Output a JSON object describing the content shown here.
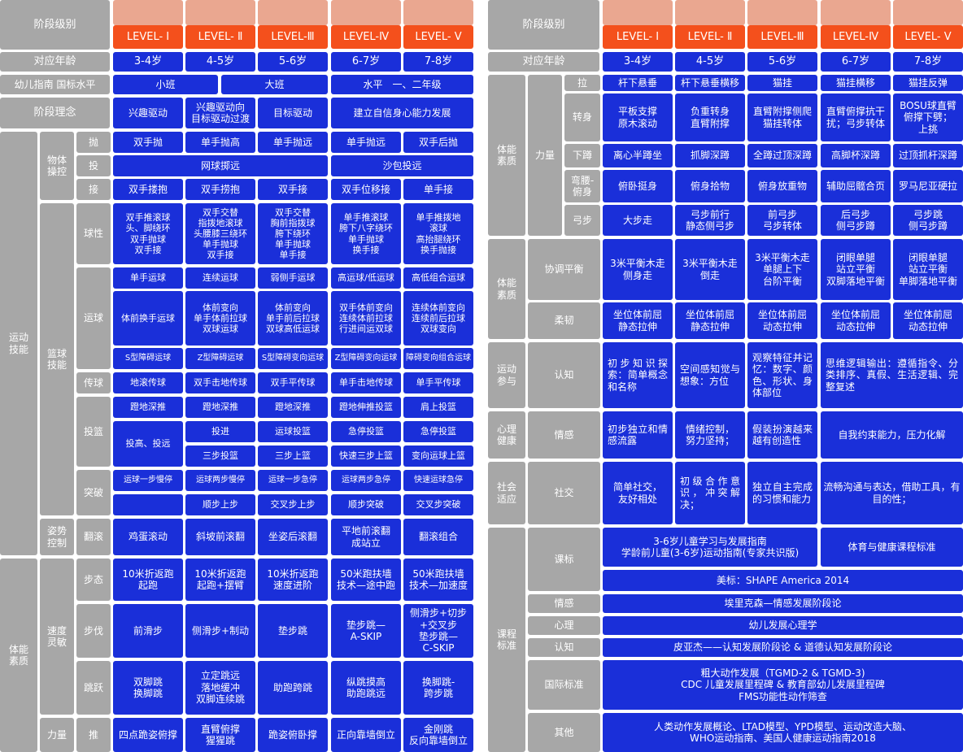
{
  "colors": {
    "gray": "#a7a7a7",
    "blue": "#1a2fd9",
    "orange": "#f4501c",
    "peach": "#eaa790"
  },
  "levels": [
    "LEVEL- Ⅰ",
    "LEVEL- Ⅱ",
    "LEVEL-Ⅲ",
    "LEVEL-Ⅳ",
    "LEVEL- Ⅴ"
  ],
  "ages": [
    "3-4岁",
    "4-5岁",
    "5-6岁",
    "6-7岁",
    "7-8岁"
  ],
  "left": {
    "header_label": "阶段级别",
    "age_label": "对应年龄",
    "guideline_label": "幼儿指南 国标水平",
    "guideline": [
      "小班",
      "大班",
      "水平　一、二年级"
    ],
    "concept_label": "阶段理念",
    "concept": [
      "兴趣驱动",
      "兴趣驱动向\n目标驱动过渡",
      "目标驱动",
      "建立自信身心能力发展"
    ],
    "sports_skill": "运动\n技能",
    "object_ctrl": "物体\n操控",
    "throw": "抛",
    "throw_items": [
      "双手抛",
      "单手抛高",
      "单手抛远",
      "单手抛远",
      "双手后抛"
    ],
    "toss": "投",
    "toss_items": [
      "网球掷远",
      "沙包投远"
    ],
    "catch": "接",
    "catch_items": [
      "双手搂抱",
      "双手捞抱",
      "双手接",
      "双手位移接",
      "单手接"
    ],
    "basketball": "篮球\n技能",
    "ballfeel": "球性",
    "ballfeel_items": [
      "双手推滚球\n头、脚绕环\n双手抛球\n双手接",
      "双手交替\n指拨地滚球\n头腰膝三绕环\n单手抛球\n双手接",
      "双手交替\n胸前指拨球\n胯下绕环\n单手抛球\n单手接",
      "单手推滚球\n胯下八字绕环\n单手抛球\n换手接",
      "单手推拨地\n滚球\n高抬腿绕环\n换手抛接"
    ],
    "dribble": "运球",
    "dribble_row1": [
      "单手运球",
      "连续运球",
      "弱侧手运球",
      "高运球/低运球",
      "高低组合运球"
    ],
    "dribble_row2": [
      "体前换手运球",
      "体前变向\n单手体前拉球\n双球运球",
      "体前变向\n单手前后拉球\n双球高低运球",
      "双手体前变向\n连续体前拉球\n行进间运双球",
      "连续体前变向\n连续前后拉球\n双球变向"
    ],
    "dribble_row3": [
      "S型障碍运球",
      "Z型障碍运球",
      "S型障碍变向运球",
      "Z型障碍变向运球",
      "障碍变向组合运球"
    ],
    "pass": "传球",
    "pass_items": [
      "地滚传球",
      "双手击地传球",
      "双手平传球",
      "单手击地传球",
      "单手平传球"
    ],
    "shoot": "投篮",
    "shoot_row1": [
      "蹬地深推",
      "蹬地深推",
      "蹬地深推",
      "蹬地伸推投篮",
      "肩上投篮"
    ],
    "shoot_first": "投高、投远",
    "shoot_row2": [
      "投进",
      "运球投篮",
      "急停投篮",
      "急停投篮"
    ],
    "shoot_row3": [
      "三步投篮",
      "三步上篮",
      "快速三步上篮",
      "变向运球上篮"
    ],
    "breakthrough": "突破",
    "break_row1": [
      "运球一步慢停",
      "运球两步慢停",
      "运球一步急停",
      "运球两步急停",
      "快速运球急停"
    ],
    "break_row2": [
      "",
      "顺步上步",
      "交叉步上步",
      "顺步突破",
      "交叉步突破"
    ],
    "posture": "姿势\n控制",
    "roll": "翻滚",
    "roll_items": [
      "鸡蛋滚动",
      "斜坡前滚翻",
      "坐姿后滚翻",
      "平地前滚翻\n成站立",
      "翻滚组合"
    ],
    "fitness": "体能\n素质",
    "speed": "速度\n灵敏",
    "stride": "步态",
    "stride_items": [
      "10米折返跑\n起跑",
      "10米折返跑\n起跑+摆臂",
      "10米折返跑\n速度进阶",
      "50米跑扶墙\n技术—途中跑",
      "50米跑扶墙\n技术—加速度"
    ],
    "step": "步伐",
    "step_items": [
      "前滑步",
      "侧滑步+制动",
      "垫步跳",
      "垫步跳—\nA-SKIP",
      "侧滑步+切步\n+交叉步\n垫步跳—\nC-SKIP"
    ],
    "jump": "跳跃",
    "jump_items": [
      "双脚跳\n换脚跳",
      "立定跳远\n落地缓冲\n双脚连续跳",
      "助跑跨跳",
      "纵跳摸高\n助跑跳远",
      "换脚跳-\n跨步跳"
    ],
    "power": "力量",
    "push": "推",
    "push_items": [
      "四点跪姿俯撑",
      "直臂俯撑\n猩猩跳",
      "跪姿俯卧撑",
      "正向靠墙倒立",
      "金刚跳\n反向靠墙倒立"
    ]
  },
  "right": {
    "header_label": "阶段级别",
    "age_label": "对应年龄",
    "fitness1": "体能\n素质",
    "power": "力量",
    "pull": "拉",
    "pull_items": [
      "杆下悬垂",
      "杆下悬垂横移",
      "猫挂",
      "猫挂横移",
      "猫挂反弹"
    ],
    "turn": "转身",
    "turn_items": [
      "平板支撑\n原木滚动",
      "负重转身\n直臂附撑",
      "直臂附撑侧爬\n猫挂转体",
      "直臂俯撑抗干\n扰；弓步转体",
      "BOSU球直臂\n俯撑下劈；\n上挑"
    ],
    "squat": "下蹲",
    "squat_items": [
      "离心半蹲坐",
      "抓脚深蹲",
      "全蹲过顶深蹲",
      "高脚杯深蹲",
      "过顶抓杆深蹲"
    ],
    "hinge": "弯腰-\n俯身",
    "hinge_items": [
      "俯卧挺身",
      "俯身拾物",
      "俯身放重物",
      "辅助屈髋合页",
      "罗马尼亚硬拉"
    ],
    "lunge": "弓步",
    "lunge_items": [
      "大步走",
      "弓步前行\n静态侧弓步",
      "前弓步\n弓步转体",
      "后弓步\n侧弓步蹲",
      "弓步跳\n侧弓步蹲"
    ],
    "fitness2": "体能\n素质",
    "coord": "协调平衡",
    "coord_items": [
      "3米平衡木走\n侧身走",
      "3米平衡木走\n倒走",
      "3米平衡木走\n单腿上下\n台阶平衡",
      "闭眼单腿\n站立平衡\n双脚落地平衡",
      "闭眼单腿\n站立平衡\n单脚落地平衡"
    ],
    "flex": "柔韧",
    "flex_items": [
      "坐位体前屈\n静态拉伸",
      "坐位体前屈\n静态拉伸",
      "坐位体前屈\n动态拉伸",
      "坐位体前屈\n动态拉伸",
      "坐位体前屈\n动态拉伸"
    ],
    "participation": "运动\n参与",
    "cognition": "认知",
    "cog_items": [
      "初步知识探索：简单概念和名称",
      "空间感知觉与想象：方位",
      "观察特征并记忆：数字、颜色、形状、身体部位",
      "思维逻辑输出：遵循指令、分类排序、真假、生活逻辑、完整复述"
    ],
    "mental": "心理\n健康",
    "emotion": "情感",
    "emo_items": [
      "初步独立和情感流露",
      "情绪控制，\n努力坚持；",
      "假装扮演越来越有创造性",
      "自我约束能力，压力化解"
    ],
    "social_adapt": "社会\n适应",
    "social": "社交",
    "soc_items": [
      "简单社交，\n友好相处",
      "初级合作意识，冲突解决；",
      "独立自主完成的习惯和能力",
      "流畅沟通与表达，借助工具，有目的性；"
    ],
    "course": "课程\n标准",
    "std": "课标",
    "std_text1": "3-6岁儿童学习与发展指南\n学龄前儿童(3-6岁)运动指南(专家共识版)",
    "std_text2": "体育与健康课程标准",
    "std_text3": "美标：SHAPE America 2014",
    "emo2": "情感",
    "emo2_text": "埃里克森—情感发展阶段论",
    "psy": "心理",
    "psy_text": "幼儿发展心理学",
    "cog2": "认知",
    "cog2_text": "皮亚杰——认知发展阶段论 & 道德认知发展阶段论",
    "intl": "国际标准",
    "intl_text": "粗大动作发展（TGMD-2 & TGMD-3)\nCDC 儿童发展里程碑 & 教育部幼儿发展里程碑\nFMS功能性动作筛查",
    "other": "其他",
    "other_text": "人类动作发展概论、LTAD模型、YPD模型、运动改造大脑、\nWHO运动指南、美国人健康运动指南2018"
  }
}
